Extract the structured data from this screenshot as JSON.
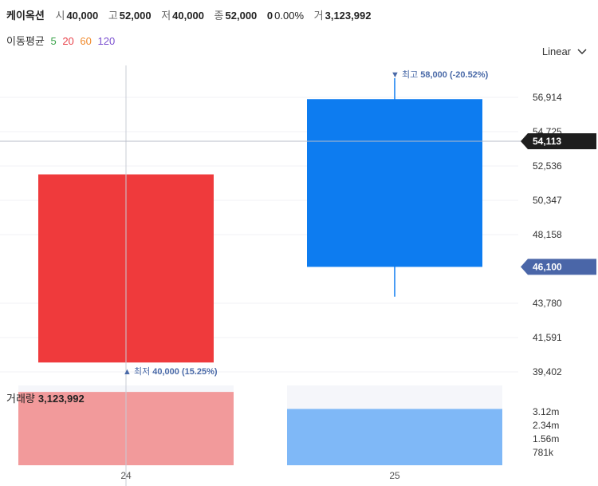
{
  "header": {
    "name": "케이옥션",
    "open_label": "시",
    "open": "40,000",
    "high_label": "고",
    "high": "52,000",
    "low_label": "저",
    "low": "40,000",
    "close_label": "종",
    "close": "52,000",
    "change": "0",
    "change_pct": "0.00%",
    "volume_label": "거",
    "volume": "3,123,992"
  },
  "moving_average": {
    "label": "이동평균",
    "periods": [
      {
        "value": "5",
        "color": "#3aa34a"
      },
      {
        "value": "20",
        "color": "#e8424a"
      },
      {
        "value": "60",
        "color": "#f08a2c"
      },
      {
        "value": "120",
        "color": "#7a4fd0"
      }
    ]
  },
  "scale_mode": "Linear",
  "volume_panel": {
    "label": "거래량",
    "value": "3,123,992"
  },
  "colors": {
    "up": "#ef3a3c",
    "down": "#0d7cf0",
    "up_volume": "#f29a9b",
    "down_volume": "#7fb8f7",
    "annotation": "#4a6aa8",
    "crosshair_tag": "#1e1e1e",
    "price_tag": "#4a66a8"
  },
  "chart_data": {
    "type": "candlestick",
    "x": [
      "24",
      "25"
    ],
    "candles": [
      {
        "x": "24",
        "open": 40000,
        "high": 52000,
        "low": 40000,
        "close": 52000,
        "direction": "up"
      },
      {
        "x": "25",
        "open": 56800,
        "high": 58000,
        "low": 44200,
        "close": 46100,
        "direction": "down"
      }
    ],
    "volume": [
      3123992,
      2400000
    ],
    "price_ticks": [
      "56,914",
      "54,725",
      "52,536",
      "50,347",
      "48,158",
      "43,780",
      "41,591",
      "39,402"
    ],
    "volume_ticks": [
      "3.12m",
      "2.34m",
      "1.56m",
      "781k"
    ],
    "annotations": {
      "high": {
        "value": 58000,
        "text": "▼ 최고 58,000 (-20.52%)",
        "prefix": "▼ 최고",
        "price": "58,000",
        "pct": "(-20.52%)"
      },
      "low": {
        "value": 40000,
        "text": "▲ 최저 40,000 (15.25%)",
        "prefix": "▲ 최저",
        "price": "40,000",
        "pct": "(15.25%)"
      }
    },
    "crosshair": {
      "x": "24",
      "price": "54,113"
    },
    "last_price_tag": "46,100",
    "y_range": [
      39402,
      58914
    ],
    "volume_range": [
      0,
      3400000
    ]
  }
}
